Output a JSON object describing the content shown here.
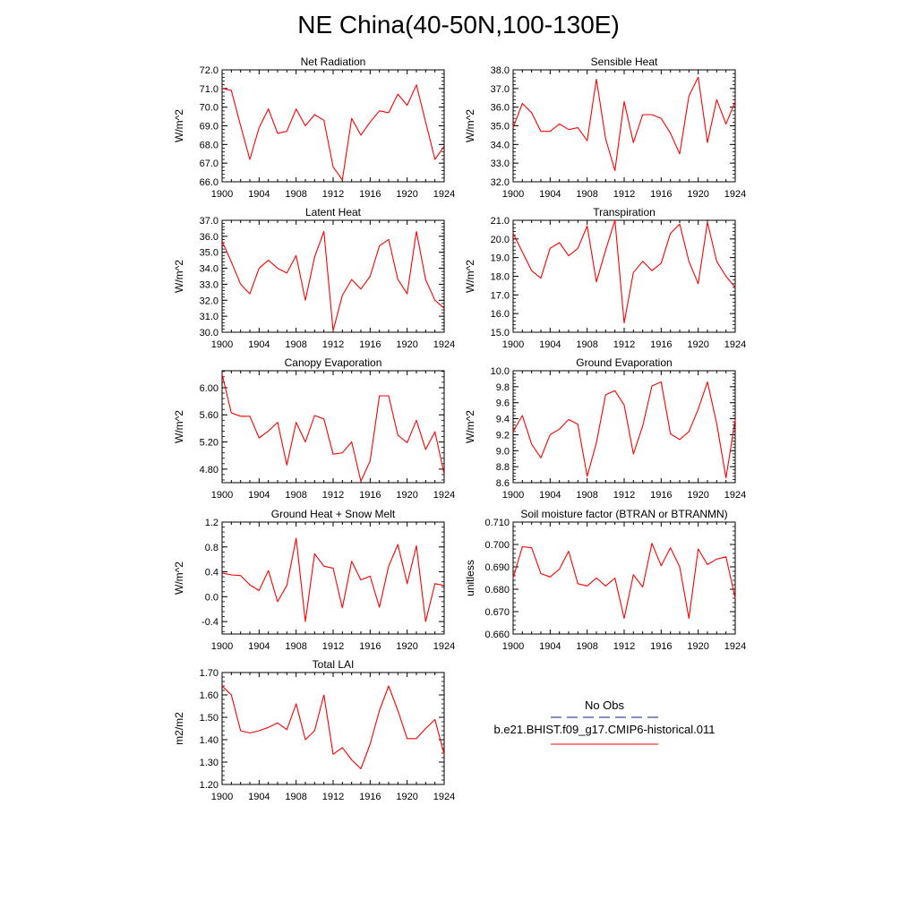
{
  "title": "NE China(40-50N,100-130E)",
  "chart_data": [
    {
      "type": "line",
      "title": "Net Radiation",
      "ylabel": "W/m^2",
      "ylim": [
        66.0,
        72.0
      ],
      "yticks": [
        66.0,
        67.0,
        68.0,
        69.0,
        70.0,
        71.0,
        72.0
      ],
      "ytick_labels": [
        "66.0",
        "67.0",
        "68.0",
        "69.0",
        "70.0",
        "71.0",
        "72.0"
      ],
      "xlim": [
        1900,
        1924
      ],
      "xticks": [
        1900,
        1904,
        1908,
        1912,
        1916,
        1920,
        1924
      ],
      "x": [
        1900,
        1901,
        1902,
        1903,
        1904,
        1905,
        1906,
        1907,
        1908,
        1909,
        1910,
        1911,
        1912,
        1913,
        1914,
        1915,
        1916,
        1917,
        1918,
        1919,
        1920,
        1921,
        1922,
        1923,
        1924
      ],
      "series": [
        {
          "values": [
            71.0,
            70.9,
            69.0,
            67.2,
            68.9,
            69.9,
            68.6,
            68.7,
            69.9,
            69.0,
            69.6,
            69.3,
            66.8,
            66.1,
            69.4,
            68.5,
            69.2,
            69.8,
            69.7,
            70.7,
            70.1,
            71.2,
            69.2,
            67.2,
            67.9
          ],
          "color": "#ff0000"
        }
      ]
    },
    {
      "type": "line",
      "title": "Sensible Heat",
      "ylabel": "W/m^2",
      "ylim": [
        32.0,
        38.0
      ],
      "yticks": [
        32.0,
        33.0,
        34.0,
        35.0,
        36.0,
        37.0,
        38.0
      ],
      "ytick_labels": [
        "32.0",
        "33.0",
        "34.0",
        "35.0",
        "36.0",
        "37.0",
        "38.0"
      ],
      "xlim": [
        1900,
        1924
      ],
      "xticks": [
        1900,
        1904,
        1908,
        1912,
        1916,
        1920,
        1924
      ],
      "x": [
        1900,
        1901,
        1902,
        1903,
        1904,
        1905,
        1906,
        1907,
        1908,
        1909,
        1910,
        1911,
        1912,
        1913,
        1914,
        1915,
        1916,
        1917,
        1918,
        1919,
        1920,
        1921,
        1922,
        1923,
        1924
      ],
      "series": [
        {
          "values": [
            34.9,
            36.2,
            35.7,
            34.7,
            34.7,
            35.1,
            34.8,
            34.9,
            34.2,
            37.5,
            34.3,
            32.6,
            36.3,
            34.1,
            35.6,
            35.6,
            35.4,
            34.6,
            33.5,
            36.6,
            37.6,
            34.1,
            36.4,
            35.1,
            36.3
          ],
          "color": "#ff0000"
        }
      ]
    },
    {
      "type": "line",
      "title": "Latent Heat",
      "ylabel": "W/m^2",
      "ylim": [
        30.0,
        37.0
      ],
      "yticks": [
        30.0,
        31.0,
        32.0,
        33.0,
        34.0,
        35.0,
        36.0,
        37.0
      ],
      "ytick_labels": [
        "30.0",
        "31.0",
        "32.0",
        "33.0",
        "34.0",
        "35.0",
        "36.0",
        "37.0"
      ],
      "xlim": [
        1900,
        1924
      ],
      "xticks": [
        1900,
        1904,
        1908,
        1912,
        1916,
        1920,
        1924
      ],
      "x": [
        1900,
        1901,
        1902,
        1903,
        1904,
        1905,
        1906,
        1907,
        1908,
        1909,
        1910,
        1911,
        1912,
        1913,
        1914,
        1915,
        1916,
        1917,
        1918,
        1919,
        1920,
        1921,
        1922,
        1923,
        1924
      ],
      "series": [
        {
          "values": [
            35.7,
            34.4,
            33.0,
            32.4,
            34.0,
            34.5,
            34.0,
            33.7,
            34.8,
            32.0,
            34.7,
            36.3,
            30.1,
            32.3,
            33.3,
            32.7,
            33.5,
            35.4,
            35.8,
            33.3,
            32.4,
            36.3,
            33.3,
            32.0,
            31.5
          ],
          "color": "#ff0000"
        }
      ]
    },
    {
      "type": "line",
      "title": "Transpiration",
      "ylabel": "W/m^2",
      "ylim": [
        15.0,
        21.0
      ],
      "yticks": [
        15.0,
        16.0,
        17.0,
        18.0,
        19.0,
        20.0,
        21.0
      ],
      "ytick_labels": [
        "15.0",
        "16.0",
        "17.0",
        "18.0",
        "19.0",
        "20.0",
        "21.0"
      ],
      "xlim": [
        1900,
        1924
      ],
      "xticks": [
        1900,
        1904,
        1908,
        1912,
        1916,
        1920,
        1924
      ],
      "x": [
        1900,
        1901,
        1902,
        1903,
        1904,
        1905,
        1906,
        1907,
        1908,
        1909,
        1910,
        1911,
        1912,
        1913,
        1914,
        1915,
        1916,
        1917,
        1918,
        1919,
        1920,
        1921,
        1922,
        1923,
        1924
      ],
      "series": [
        {
          "values": [
            20.3,
            19.3,
            18.3,
            17.9,
            19.5,
            19.8,
            19.1,
            19.5,
            20.7,
            17.7,
            19.4,
            21.0,
            15.5,
            18.2,
            18.8,
            18.3,
            18.7,
            20.3,
            20.8,
            18.8,
            17.6,
            20.9,
            18.8,
            18.0,
            17.4
          ],
          "color": "#ff0000"
        }
      ]
    },
    {
      "type": "line",
      "title": "Canopy Evaporation",
      "ylabel": "W/m^2",
      "ylim": [
        4.6,
        6.25
      ],
      "yticks": [
        4.8,
        5.2,
        5.6,
        6.0
      ],
      "ytick_labels": [
        "4.80",
        "5.20",
        "5.60",
        "6.00"
      ],
      "xlim": [
        1900,
        1924
      ],
      "xticks": [
        1900,
        1904,
        1908,
        1912,
        1916,
        1920,
        1924
      ],
      "x": [
        1900,
        1901,
        1902,
        1903,
        1904,
        1905,
        1906,
        1907,
        1908,
        1909,
        1910,
        1911,
        1912,
        1913,
        1914,
        1915,
        1916,
        1917,
        1918,
        1919,
        1920,
        1921,
        1922,
        1923,
        1924
      ],
      "series": [
        {
          "values": [
            6.2,
            5.63,
            5.58,
            5.58,
            5.26,
            5.36,
            5.49,
            4.86,
            5.49,
            5.2,
            5.59,
            5.54,
            5.02,
            5.04,
            5.2,
            4.62,
            4.92,
            5.88,
            5.88,
            5.3,
            5.19,
            5.52,
            5.09,
            5.35,
            4.73
          ],
          "color": "#ff0000"
        }
      ]
    },
    {
      "type": "line",
      "title": "Ground Evaporation",
      "ylabel": "W/m^2",
      "ylim": [
        8.6,
        10.0
      ],
      "yticks": [
        8.6,
        8.8,
        9.0,
        9.2,
        9.4,
        9.6,
        9.8,
        10.0
      ],
      "ytick_labels": [
        "8.6",
        "8.8",
        "9.0",
        "9.2",
        "9.4",
        "9.6",
        "9.8",
        "10.0"
      ],
      "xlim": [
        1900,
        1924
      ],
      "xticks": [
        1900,
        1904,
        1908,
        1912,
        1916,
        1920,
        1924
      ],
      "x": [
        1900,
        1901,
        1902,
        1903,
        1904,
        1905,
        1906,
        1907,
        1908,
        1909,
        1910,
        1911,
        1912,
        1913,
        1914,
        1915,
        1916,
        1917,
        1918,
        1919,
        1920,
        1921,
        1922,
        1923,
        1924
      ],
      "series": [
        {
          "values": [
            9.24,
            9.44,
            9.08,
            8.91,
            9.2,
            9.27,
            9.39,
            9.33,
            8.68,
            9.1,
            9.7,
            9.75,
            9.57,
            8.96,
            9.31,
            9.81,
            9.86,
            9.21,
            9.14,
            9.24,
            9.52,
            9.86,
            9.34,
            8.66,
            9.39
          ],
          "color": "#ff0000"
        }
      ]
    },
    {
      "type": "line",
      "title": "Ground Heat + Snow Melt",
      "ylabel": "W/m^2",
      "ylim": [
        -0.6,
        1.2
      ],
      "yticks": [
        -0.4,
        0.0,
        0.4,
        0.8,
        1.2
      ],
      "ytick_labels": [
        "-0.4",
        "0.0",
        "0.4",
        "0.8",
        "1.2"
      ],
      "xlim": [
        1900,
        1924
      ],
      "xticks": [
        1900,
        1904,
        1908,
        1912,
        1916,
        1920,
        1924
      ],
      "x": [
        1900,
        1901,
        1902,
        1903,
        1904,
        1905,
        1906,
        1907,
        1908,
        1909,
        1910,
        1911,
        1912,
        1913,
        1914,
        1915,
        1916,
        1917,
        1918,
        1919,
        1920,
        1921,
        1922,
        1923,
        1924
      ],
      "series": [
        {
          "values": [
            0.38,
            0.35,
            0.34,
            0.19,
            0.1,
            0.42,
            -0.08,
            0.18,
            0.94,
            -0.4,
            0.69,
            0.49,
            0.46,
            -0.18,
            0.57,
            0.27,
            0.33,
            -0.17,
            0.49,
            0.84,
            0.21,
            0.82,
            -0.4,
            0.21,
            0.18
          ],
          "color": "#ff0000"
        }
      ]
    },
    {
      "type": "line",
      "title": "Soil moisture factor (BTRAN or BTRANMN)",
      "ylabel": "unitless",
      "ylim": [
        0.66,
        0.71
      ],
      "yticks": [
        0.66,
        0.67,
        0.68,
        0.69,
        0.7,
        0.71
      ],
      "ytick_labels": [
        "0.660",
        "0.670",
        "0.680",
        "0.690",
        "0.700",
        "0.710"
      ],
      "xlim": [
        1900,
        1924
      ],
      "xticks": [
        1900,
        1904,
        1908,
        1912,
        1916,
        1920,
        1924
      ],
      "x": [
        1900,
        1901,
        1902,
        1903,
        1904,
        1905,
        1906,
        1907,
        1908,
        1909,
        1910,
        1911,
        1912,
        1913,
        1914,
        1915,
        1916,
        1917,
        1918,
        1919,
        1920,
        1921,
        1922,
        1923,
        1924
      ],
      "series": [
        {
          "values": [
            0.685,
            0.699,
            0.6985,
            0.687,
            0.6855,
            0.689,
            0.697,
            0.6825,
            0.6815,
            0.685,
            0.6815,
            0.685,
            0.667,
            0.6865,
            0.681,
            0.7005,
            0.6905,
            0.6985,
            0.69,
            0.667,
            0.698,
            0.691,
            0.6935,
            0.6945,
            0.676
          ],
          "color": "#ff0000"
        }
      ]
    },
    {
      "type": "line",
      "title": "Total LAI",
      "ylabel": "m2/m2",
      "ylim": [
        1.2,
        1.7
      ],
      "yticks": [
        1.2,
        1.3,
        1.4,
        1.5,
        1.6,
        1.7
      ],
      "ytick_labels": [
        "1.20",
        "1.30",
        "1.40",
        "1.50",
        "1.60",
        "1.70"
      ],
      "xlim": [
        1900,
        1924
      ],
      "xticks": [
        1900,
        1904,
        1908,
        1912,
        1916,
        1920,
        1924
      ],
      "x": [
        1900,
        1901,
        1902,
        1903,
        1904,
        1905,
        1906,
        1907,
        1908,
        1909,
        1910,
        1911,
        1912,
        1913,
        1914,
        1915,
        1916,
        1917,
        1918,
        1919,
        1920,
        1921,
        1922,
        1923,
        1924
      ],
      "series": [
        {
          "values": [
            1.64,
            1.6,
            1.44,
            1.43,
            1.44,
            1.455,
            1.475,
            1.445,
            1.56,
            1.4,
            1.44,
            1.6,
            1.335,
            1.365,
            1.31,
            1.27,
            1.38,
            1.53,
            1.64,
            1.53,
            1.405,
            1.405,
            1.45,
            1.49,
            1.335
          ],
          "color": "#ff0000"
        }
      ]
    }
  ],
  "legend": {
    "items": [
      {
        "label": "No Obs",
        "color": "#1a1a80",
        "dash": "dashed"
      },
      {
        "label": "b.e21.BHIST.f09_g17.CMIP6-historical.011",
        "color": "#ff0000",
        "dash": "solid"
      }
    ]
  }
}
